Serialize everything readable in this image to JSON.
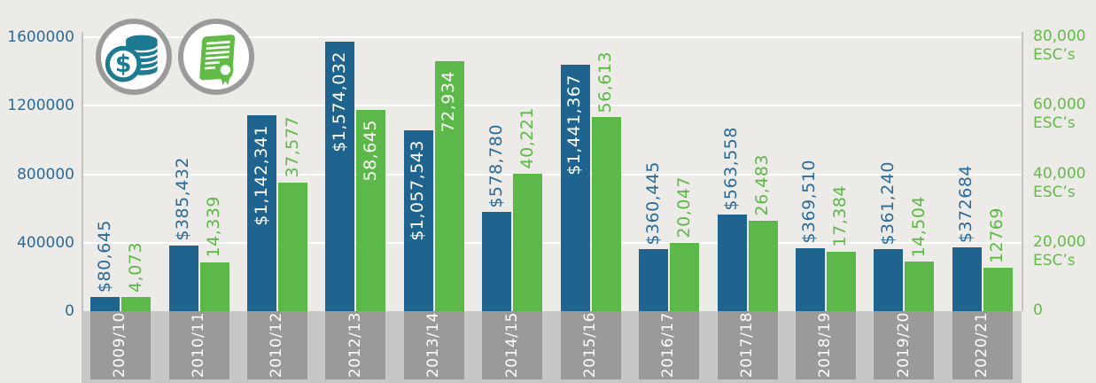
{
  "chart_data": {
    "type": "bar",
    "title": "",
    "categories": [
      "2009/10",
      "2010/11",
      "2010/12",
      "2012/13",
      "2013/14",
      "2014/15",
      "2015/16",
      "2016/17",
      "2017/18",
      "2018/19",
      "2019/20",
      "2020/21"
    ],
    "series": [
      {
        "name": "Dollars (left axis)",
        "axis": "left",
        "values": [
          80645,
          385432,
          1142341,
          1574032,
          1057543,
          578780,
          1441367,
          360445,
          563558,
          369510,
          361240,
          372684
        ],
        "labels": [
          "$80,645",
          "$385,432",
          "$1,142,341",
          "$1,574,032",
          "$1,057,543",
          "$578,780",
          "$1,441,367",
          "$360,445",
          "$563,558",
          "$369,510",
          "$361,240",
          "$372684"
        ],
        "label_inside": [
          false,
          false,
          true,
          true,
          true,
          false,
          true,
          false,
          false,
          false,
          false,
          false
        ]
      },
      {
        "name": "ESC's (right axis)",
        "axis": "right",
        "values": [
          4073,
          14339,
          37577,
          58645,
          72934,
          40221,
          56613,
          20047,
          26483,
          17384,
          14504,
          12769
        ],
        "labels": [
          "4,073",
          "14,339",
          "37,577",
          "58,645",
          "72,934",
          "40,221",
          "56,613",
          "20,047",
          "26,483",
          "17,384",
          "14,504",
          "12769"
        ],
        "label_inside": [
          false,
          false,
          false,
          true,
          true,
          false,
          false,
          false,
          false,
          false,
          false,
          false
        ]
      }
    ],
    "left_axis": {
      "max": 1600000,
      "ticks": [
        {
          "label": "1600000",
          "value": 1600000
        },
        {
          "label": "1200000",
          "value": 1200000
        },
        {
          "label": "800000",
          "value": 800000
        },
        {
          "label": "400000",
          "value": 400000
        },
        {
          "label": "0",
          "value": 0
        }
      ]
    },
    "right_axis": {
      "max": 80000,
      "ticks": [
        {
          "label": "80,000",
          "suffix": "ESC’s",
          "value": 80000
        },
        {
          "label": "60,000",
          "suffix": "ESC’s",
          "value": 60000
        },
        {
          "label": "40,000",
          "suffix": "ESC’s",
          "value": 40000
        },
        {
          "label": "20,000",
          "suffix": "ESC’s",
          "value": 20000
        },
        {
          "label": "0",
          "suffix": "",
          "value": 0
        }
      ]
    },
    "grid": true,
    "legend": "icon badges top-left: money-coins (dollars), certificate-seal (ESC's)"
  },
  "icons": {
    "money": "money-coins-icon",
    "certificate": "certificate-seal-icon"
  },
  "colors": {
    "background": "#EDEBE8",
    "gridline": "#FFFFFF",
    "axis_line": "#C5C3C0",
    "strip": "#C9C7C5",
    "band": "#9B9A99",
    "bar_blue": "#1F648E",
    "bar_green": "#5CB848",
    "label_blue": "#2B6B99",
    "label_green": "#5CB847",
    "axis_left_text": "#2B6B99",
    "axis_right_text": "#62BB46",
    "category_text": "#FFFFFF",
    "inside_label_text": "#FFFFFF",
    "icon_teal": "#1C7A92",
    "icon_green": "#62BB46",
    "icon_border": "#9B9B9B"
  }
}
